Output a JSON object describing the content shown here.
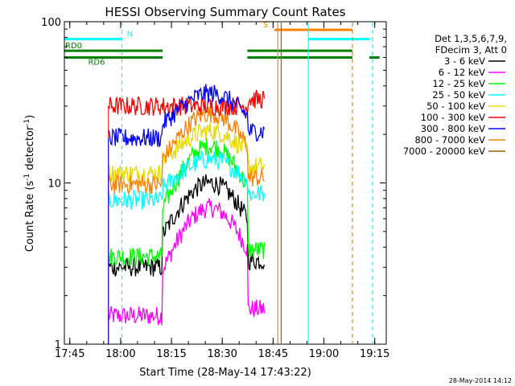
{
  "chart_data": {
    "type": "line",
    "title": "HESSI Observing Summary Count Rates",
    "xlabel": "Start Time (28-May-14 17:43:22)",
    "ylabel_main": "Count Rate (s",
    "ylabel_sup1": "-1",
    "ylabel_mid": " detector",
    "ylabel_sup2": "-1",
    "ylabel_end": ")",
    "yscale": "log",
    "ylim": [
      1,
      100
    ],
    "xlim_minutes": [
      0,
      95
    ],
    "x_ticks": [
      {
        "m": 1.6,
        "label": "17:45"
      },
      {
        "m": 16.6,
        "label": "18:00"
      },
      {
        "m": 31.6,
        "label": "18:15"
      },
      {
        "m": 46.6,
        "label": "18:30"
      },
      {
        "m": 61.6,
        "label": "18:45"
      },
      {
        "m": 76.6,
        "label": "19:00"
      },
      {
        "m": 91.6,
        "label": "19:15"
      }
    ],
    "y_ticks": [
      {
        "v": 1,
        "label": "1"
      },
      {
        "v": 10,
        "label": "10"
      },
      {
        "v": 100,
        "label": "100"
      }
    ],
    "legend_header": [
      "Det 1,3,5,6,7,9,",
      "FDecim 3, Att 0"
    ],
    "series": [
      {
        "name": "3 - 6 keV",
        "color": "#000000",
        "level": 3.0,
        "peak": 10
      },
      {
        "name": "6 - 12 keV",
        "color": "#ff00ff",
        "level": 1.5,
        "peak": 7
      },
      {
        "name": "12 - 25 keV",
        "color": "#00ff00",
        "level": 3.5,
        "peak": 17
      },
      {
        "name": "25 - 50 keV",
        "color": "#00ffff",
        "level": 7.8,
        "peak": 14
      },
      {
        "name": "50 - 100 keV",
        "color": "#e8d800",
        "level": 11.5,
        "peak": 21
      },
      {
        "name": "100 - 300 keV",
        "color": "#ff0000",
        "level": 30,
        "peak": 30
      },
      {
        "name": "300 - 800 keV",
        "color": "#0000ff",
        "level": 19,
        "peak": 36
      },
      {
        "name": "800 - 7000 keV",
        "color": "#ff8000",
        "level": 9.8,
        "peak": 27
      },
      {
        "name": "7000 - 20000 keV",
        "color": "#a06000",
        "level": 1.0,
        "peak": 1
      }
    ],
    "data_window_minutes": [
      13,
      59
    ],
    "peak_minute": 43,
    "flags": [
      {
        "label": "N",
        "color": "#00ffff",
        "value": 78,
        "segments": [
          [
            0,
            17
          ],
          [
            72,
            90
          ]
        ]
      },
      {
        "label": "S",
        "color": "#ff8000",
        "value": 89,
        "segments": [
          [
            62,
            85
          ]
        ]
      },
      {
        "label": "RD0",
        "color": "#008000",
        "value": 66,
        "segments": [
          [
            0,
            29
          ],
          [
            54,
            85
          ]
        ]
      },
      {
        "label": "RD6",
        "color": "#008000",
        "value": 60,
        "segments": [
          [
            0,
            29
          ],
          [
            54,
            85
          ],
          [
            90,
            93
          ]
        ]
      }
    ],
    "vlines": [
      {
        "m": 17,
        "color": "#00ffff",
        "dash": true
      },
      {
        "m": 63,
        "color": "#ff8000",
        "dash": false
      },
      {
        "m": 64,
        "color": "#a06000",
        "dash": false
      },
      {
        "m": 72,
        "color": "#00ffff",
        "dash": false
      },
      {
        "m": 85,
        "color": "#ff8000",
        "dash": true
      },
      {
        "m": 91,
        "color": "#00ffff",
        "dash": true
      }
    ]
  },
  "footer": {
    "timestamp": "28-May-2014 14:12"
  }
}
